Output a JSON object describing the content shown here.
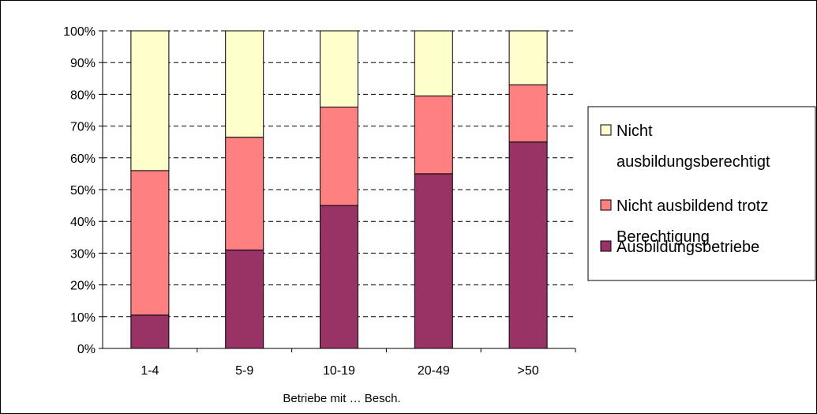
{
  "chart_data": {
    "type": "bar",
    "stacked": true,
    "percent": true,
    "title": "",
    "xlabel": "Betriebe mit … Besch.",
    "ylabel": "",
    "ylim": [
      0,
      100
    ],
    "yticks": [
      "0%",
      "10%",
      "20%",
      "30%",
      "40%",
      "50%",
      "60%",
      "70%",
      "80%",
      "90%",
      "100%"
    ],
    "grid": "horizontal dashed",
    "legend_position": "right",
    "categories": [
      "1-4",
      "5-9",
      "10-19",
      "20-49",
      ">50"
    ],
    "series": [
      {
        "name": "Ausbildungsbetriebe",
        "color": "#993366",
        "values": [
          10.5,
          31,
          45,
          55,
          65
        ]
      },
      {
        "name": "Nicht ausbildend trotz Berechtigung",
        "color": "#FF8080",
        "values": [
          45.5,
          35.5,
          31,
          24.5,
          18
        ]
      },
      {
        "name": "Nicht ausbildungsberechtigt",
        "color": "#FFFFCC",
        "values": [
          44,
          33.5,
          24,
          20.5,
          17
        ]
      }
    ],
    "legend": [
      {
        "lines": [
          "Nicht",
          "ausbildungsberechtigt"
        ],
        "color": "#FFFFCC"
      },
      {
        "lines": [
          "Nicht ausbildend trotz",
          "Berechtigung"
        ],
        "color": "#FF8080"
      },
      {
        "lines": [
          "Ausbildungsbetriebe"
        ],
        "color": "#993366"
      }
    ]
  }
}
